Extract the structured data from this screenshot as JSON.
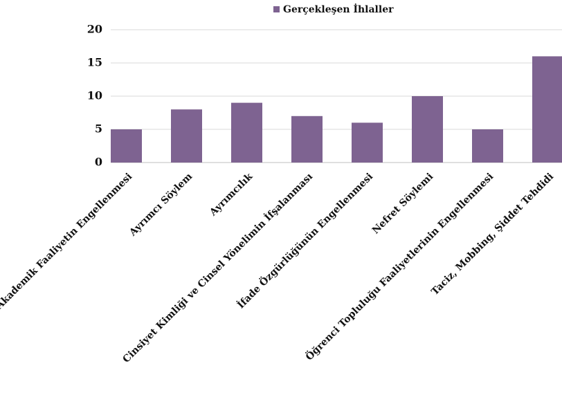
{
  "chart_data": {
    "type": "bar",
    "legend": "Gerçekleşen İhlaller",
    "categories": [
      "Akademik Faaliyetin Engellenmesi",
      "Ayrımcı Söylem",
      "Ayrımcılık",
      "Cinsiyet Kimliği ve Cinsel Yönelimin İfşalanması",
      "İfade Özgürlüğünün Engellenmesi",
      "Nefret Söylemi",
      "Öğrenci Topluluğu Faaliyetlerinin Engellenmesi",
      "Taciz, Mobbing, Şiddet Tehdidi"
    ],
    "values": [
      5,
      8,
      9,
      7,
      6,
      10,
      5,
      16
    ],
    "color": "#7e6391",
    "ylim": [
      0,
      20
    ],
    "yticks": [
      0,
      5,
      10,
      15,
      20
    ],
    "grid": true,
    "legend_position": "top"
  }
}
